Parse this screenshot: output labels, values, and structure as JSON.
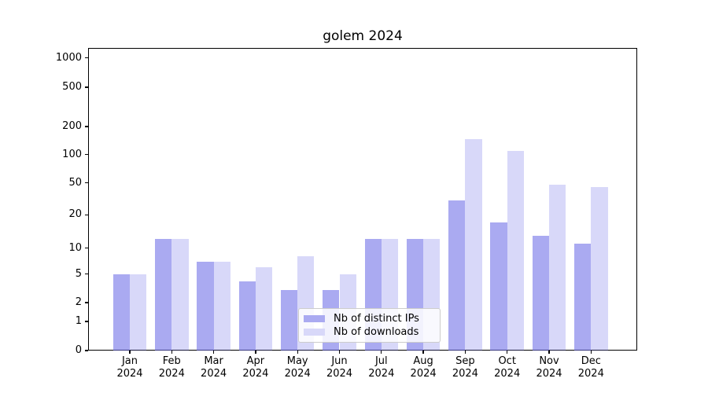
{
  "title": "golem 2024",
  "chart_data": {
    "type": "bar",
    "title": "golem 2024",
    "categories": [
      "Jan 2024",
      "Feb 2024",
      "Mar 2024",
      "Apr 2024",
      "May 2024",
      "Jun 2024",
      "Jul 2024",
      "Aug 2024",
      "Sep 2024",
      "Oct 2024",
      "Nov 2024",
      "Dec 2024"
    ],
    "series": [
      {
        "name": "Nb of distinct IPs",
        "values": [
          5,
          12,
          7,
          4,
          3,
          3,
          12,
          12,
          30,
          17,
          13,
          11
        ]
      },
      {
        "name": "Nb of downloads",
        "values": [
          5,
          12,
          7,
          6,
          8,
          5,
          12,
          12,
          145,
          110,
          48,
          44
        ]
      }
    ],
    "y_axis": {
      "ticks": [
        0,
        1,
        2,
        5,
        10,
        20,
        50,
        100,
        200,
        500,
        1000
      ],
      "scale": "log above 1, linear 0-1",
      "ylim": [
        0,
        1265
      ]
    },
    "grid": {
      "enabled": true,
      "major_lines": [
        1,
        10,
        100,
        1000
      ],
      "minor_lines": [
        2,
        3,
        4,
        5,
        6,
        7,
        8,
        9,
        20,
        30,
        40,
        50,
        60,
        70,
        80,
        90,
        200,
        300,
        400,
        500,
        600,
        700,
        800,
        900
      ]
    },
    "legend": {
      "position": "lower center",
      "labels": [
        "Nb of distinct IPs",
        "Nb of downloads"
      ]
    },
    "colors": {
      "bar_dark": "rgba(100,100,230,0.55)",
      "bar_light": "rgba(100,100,230,0.25)",
      "bar_dark_hex": "#aaaaf1",
      "bar_light_hex": "#d8d8f9",
      "grid_major": "#b3b3b3",
      "grid_minor": "#e9e9e9"
    }
  }
}
